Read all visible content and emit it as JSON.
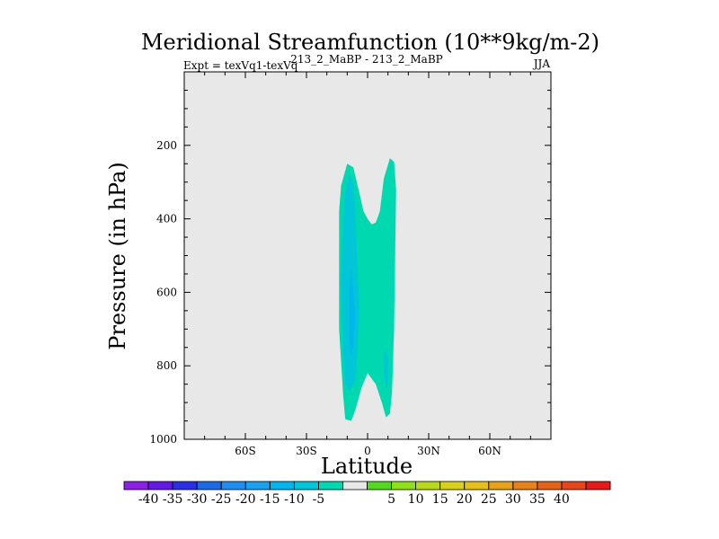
{
  "chart_data": {
    "type": "contour",
    "title": "Meridional Streamfunction (10**9kg/m-2)",
    "left_annotation": "Expt = texVq1-texVq",
    "center_annotation": "213_2_MaBP - 213_2_MaBP",
    "season": "JJA",
    "xlabel": "Latitude",
    "ylabel": "Pressure (in hPa)",
    "xlim": [
      -90,
      90
    ],
    "ylim": [
      1000,
      0
    ],
    "xticks": [
      {
        "value": -60,
        "label": "60S"
      },
      {
        "value": -30,
        "label": "30S"
      },
      {
        "value": 0,
        "label": "0"
      },
      {
        "value": 30,
        "label": "30N"
      },
      {
        "value": 60,
        "label": "60N"
      }
    ],
    "yticks": [
      {
        "value": 200,
        "label": "200"
      },
      {
        "value": 400,
        "label": "400"
      },
      {
        "value": 600,
        "label": "600"
      },
      {
        "value": 800,
        "label": "800"
      },
      {
        "value": 1000,
        "label": "1000"
      }
    ],
    "background_color": "#e8e8e8",
    "regions": [
      {
        "name": "contour-region-minus5",
        "level": "-10 to -5",
        "color": "#00d8b0",
        "points": [
          [
            -14,
            380
          ],
          [
            -13,
            310
          ],
          [
            -10,
            250
          ],
          [
            -7,
            260
          ],
          [
            -4,
            330
          ],
          [
            -2,
            380
          ],
          [
            0,
            400
          ],
          [
            2,
            415
          ],
          [
            4,
            410
          ],
          [
            6,
            380
          ],
          [
            8,
            290
          ],
          [
            11,
            235
          ],
          [
            13,
            245
          ],
          [
            14,
            320
          ],
          [
            13,
            700
          ],
          [
            12,
            870
          ],
          [
            11,
            930
          ],
          [
            9,
            940
          ],
          [
            7,
            900
          ],
          [
            4,
            850
          ],
          [
            0,
            820
          ],
          [
            -3,
            860
          ],
          [
            -6,
            920
          ],
          [
            -8,
            950
          ],
          [
            -11,
            945
          ],
          [
            -12,
            880
          ],
          [
            -14,
            700
          ]
        ]
      },
      {
        "name": "contour-region-minus10",
        "level": "-15 to -10",
        "color": "#00c6d8",
        "points": [
          [
            -12,
            420
          ],
          [
            -11,
            330
          ],
          [
            -9,
            280
          ],
          [
            -7,
            305
          ],
          [
            -6,
            380
          ],
          [
            -5,
            540
          ],
          [
            -4,
            640
          ],
          [
            -5,
            760
          ],
          [
            -6,
            840
          ],
          [
            -9,
            870
          ],
          [
            -11,
            850
          ],
          [
            -12,
            760
          ],
          [
            -13,
            580
          ]
        ]
      },
      {
        "name": "contour-region-minus15",
        "level": "-20 to -15",
        "color": "#00b6ec",
        "points": [
          [
            -8,
            530
          ],
          [
            -7,
            600
          ],
          [
            -6,
            660
          ],
          [
            -7,
            740
          ],
          [
            -8,
            780
          ],
          [
            -9,
            720
          ],
          [
            -9,
            600
          ]
        ]
      },
      {
        "name": "contour-region-nh-minus10",
        "level": "-15 to -10",
        "color": "#00c6d8",
        "points": [
          [
            9,
            750
          ],
          [
            10,
            790
          ],
          [
            10,
            840
          ],
          [
            9,
            860
          ],
          [
            8,
            820
          ],
          [
            8,
            770
          ]
        ]
      }
    ],
    "colorbar": {
      "colors": [
        "#8c1ee6",
        "#6418e6",
        "#2a2ee6",
        "#1e6ae6",
        "#1e8ef0",
        "#1aa2f0",
        "#00b6ec",
        "#00c6d8",
        "#00d8b0",
        "#e8e8e8",
        "#52d81e",
        "#8ee01a",
        "#bad81a",
        "#d8d01a",
        "#e6c01a",
        "#e6a21a",
        "#e6821a",
        "#e6621a",
        "#e6461a",
        "#e61a1a"
      ],
      "labels": [
        "-40",
        "-35",
        "-30",
        "-25",
        "-20",
        "-15",
        "-10",
        "-5",
        "5",
        "10",
        "15",
        "20",
        "25",
        "30",
        "35",
        "40"
      ]
    }
  }
}
